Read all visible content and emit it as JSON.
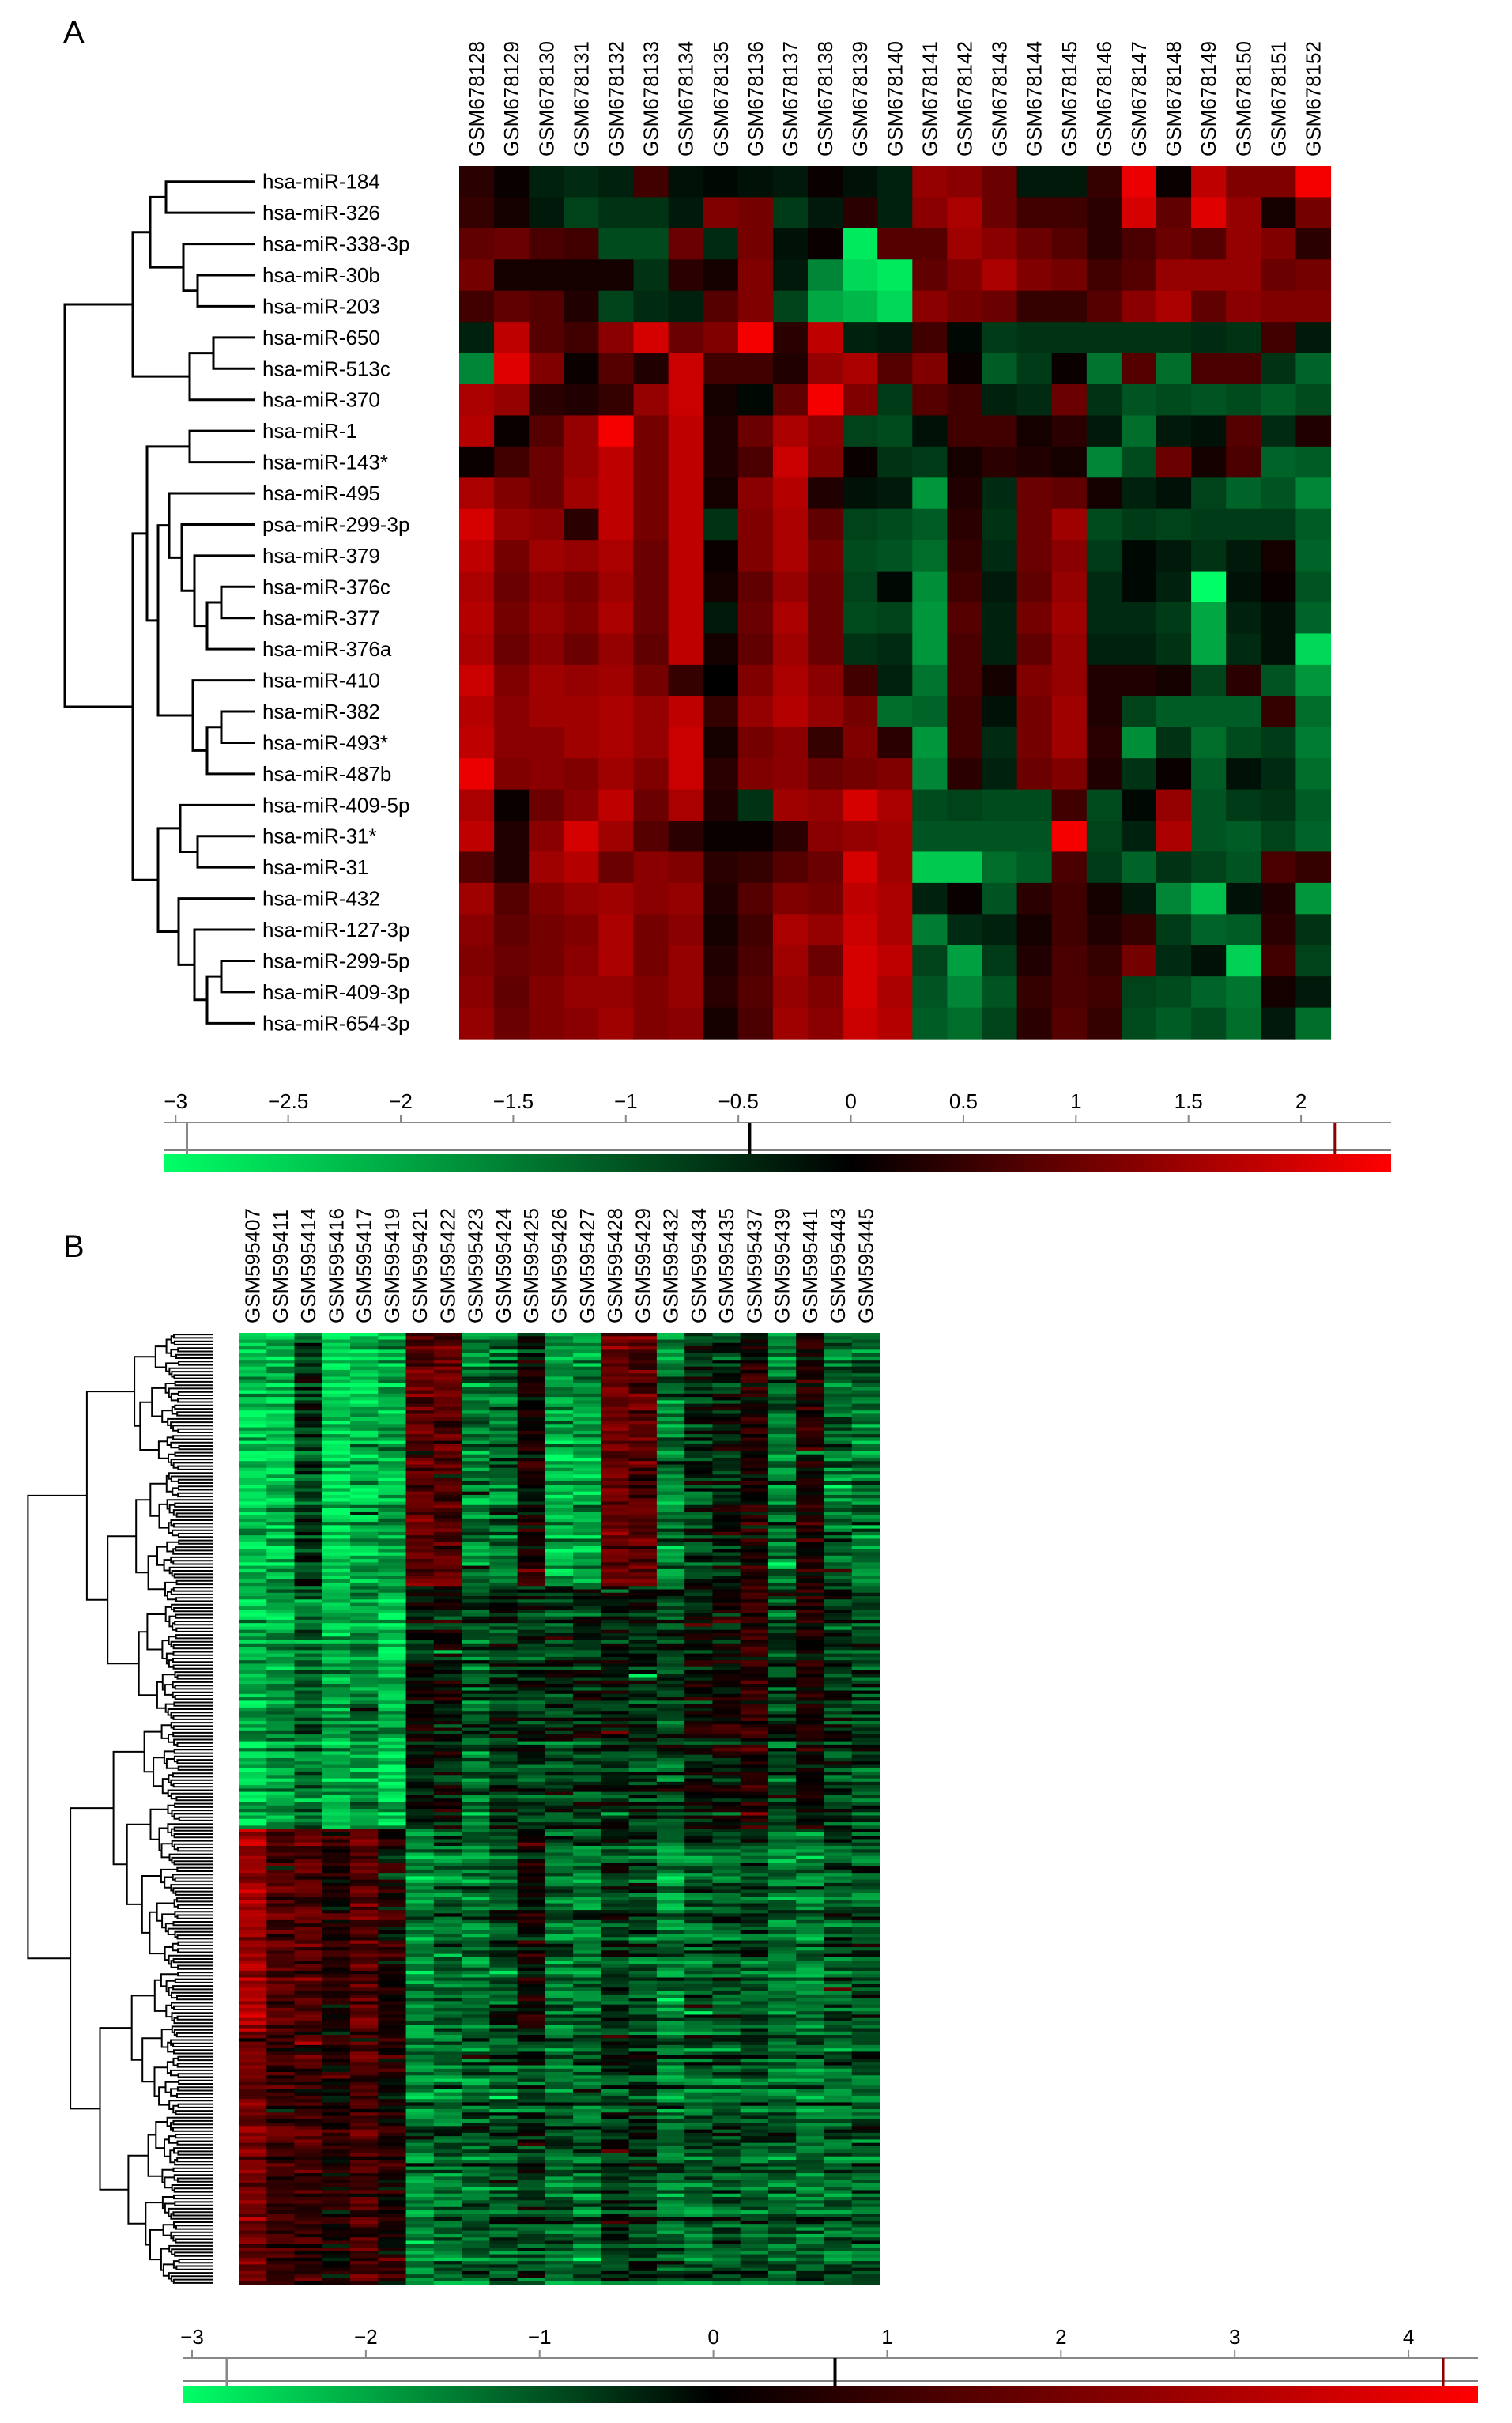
{
  "panels": {
    "a": {
      "label": "A"
    },
    "b": {
      "label": "B"
    }
  },
  "colors": {
    "low": "#00ff66",
    "mid": "#000000",
    "high": "#ff0000"
  },
  "chart_data": [
    {
      "type": "heatmap",
      "panel": "A",
      "x": [
        "GSM678128",
        "GSM678129",
        "GSM678130",
        "GSM678131",
        "GSM678132",
        "GSM678133",
        "GSM678134",
        "GSM678135",
        "GSM678136",
        "GSM678137",
        "GSM678138",
        "GSM678139",
        "GSM678140",
        "GSM678141",
        "GSM678142",
        "GSM678143",
        "GSM678144",
        "GSM678145",
        "GSM678146",
        "GSM678147",
        "GSM678148",
        "GSM678149",
        "GSM678150",
        "GSM678151",
        "GSM678152"
      ],
      "y": [
        "hsa-miR-184",
        "hsa-miR-326",
        "hsa-miR-338-3p",
        "hsa-miR-30b",
        "hsa-miR-203",
        "hsa-miR-650",
        "hsa-miR-513c",
        "hsa-miR-370",
        "hsa-miR-1",
        "hsa-miR-143*",
        "hsa-miR-495",
        "psa-miR-299-3p",
        "hsa-miR-379",
        "hsa-miR-376c",
        "hsa-miR-377",
        "hsa-miR-376a",
        "hsa-miR-410",
        "hsa-miR-382",
        "hsa-miR-493*",
        "hsa-miR-487b",
        "hsa-miR-409-5p",
        "hsa-miR-31*",
        "hsa-miR-31",
        "hsa-miR-432",
        "hsa-miR-127-3p",
        "hsa-miR-299-5p",
        "hsa-miR-409-3p",
        "hsa-miR-654-3p"
      ],
      "values": [
        [
          0.4,
          0.1,
          -0.4,
          -0.5,
          -0.4,
          0.6,
          -0.2,
          -0.1,
          -0.2,
          -0.3,
          0.1,
          -0.2,
          -0.4,
          1.4,
          1.3,
          1.0,
          -0.3,
          -0.3,
          0.5,
          2.2,
          0.1,
          1.8,
          1.2,
          1.2,
          2.3
        ],
        [
          0.5,
          0.2,
          -0.3,
          -0.8,
          -0.6,
          -0.6,
          -0.3,
          1.2,
          1.1,
          -0.7,
          -0.3,
          0.4,
          -0.4,
          1.3,
          1.6,
          1.0,
          0.6,
          0.6,
          0.4,
          2.0,
          0.9,
          2.1,
          1.4,
          0.2,
          1.1
        ],
        [
          0.9,
          1.0,
          0.7,
          0.6,
          -0.9,
          -0.9,
          1.0,
          -0.5,
          1.1,
          -0.2,
          0.1,
          -2.8,
          0.8,
          0.8,
          1.5,
          1.3,
          1.0,
          0.8,
          0.4,
          0.7,
          1.0,
          0.8,
          1.4,
          1.2,
          0.4
        ],
        [
          1.1,
          0.2,
          0.2,
          0.2,
          0.2,
          -0.6,
          0.4,
          0.2,
          1.2,
          -0.3,
          -1.6,
          -2.6,
          -2.8,
          0.9,
          1.2,
          1.6,
          1.2,
          1.1,
          0.6,
          0.8,
          1.4,
          1.4,
          1.4,
          1.0,
          1.1
        ],
        [
          0.6,
          0.9,
          0.8,
          0.3,
          -0.8,
          -0.5,
          -0.4,
          0.8,
          1.2,
          -0.8,
          -2.0,
          -2.2,
          -2.6,
          1.3,
          1.1,
          1.0,
          0.5,
          0.5,
          0.8,
          1.3,
          1.6,
          0.9,
          1.3,
          1.2,
          1.2
        ],
        [
          -0.4,
          1.8,
          0.8,
          0.6,
          1.3,
          2.0,
          1.0,
          1.2,
          2.3,
          0.4,
          1.8,
          -0.4,
          -0.3,
          0.6,
          -0.1,
          -0.7,
          -0.6,
          -0.6,
          -0.6,
          -0.6,
          -0.6,
          -0.5,
          -0.6,
          0.6,
          -0.3
        ],
        [
          -1.6,
          2.1,
          1.2,
          0.1,
          0.8,
          0.3,
          1.9,
          0.6,
          0.6,
          0.3,
          1.4,
          1.6,
          0.8,
          1.2,
          0.1,
          -1.1,
          -0.7,
          0.1,
          -1.4,
          0.8,
          -1.3,
          0.7,
          0.7,
          -0.6,
          -1.2
        ],
        [
          1.6,
          1.4,
          0.4,
          0.3,
          0.5,
          1.4,
          1.9,
          0.2,
          -0.1,
          0.9,
          2.3,
          1.2,
          -0.7,
          0.8,
          0.6,
          -0.4,
          -0.5,
          1.0,
          -0.6,
          -1.0,
          -0.9,
          -1.0,
          -0.9,
          -1.1,
          -0.9
        ],
        [
          1.7,
          0.1,
          0.8,
          1.4,
          2.3,
          1.1,
          1.8,
          0.3,
          1.0,
          1.6,
          1.3,
          -0.8,
          -0.9,
          -0.2,
          0.6,
          0.6,
          0.2,
          0.4,
          -0.3,
          -1.3,
          -0.3,
          -0.2,
          0.8,
          -0.5,
          0.3
        ],
        [
          0.1,
          0.6,
          1.0,
          1.4,
          1.8,
          1.1,
          1.8,
          0.3,
          0.7,
          1.9,
          1.2,
          0.1,
          -0.6,
          -0.7,
          0.2,
          0.4,
          0.3,
          0.2,
          -1.6,
          -0.9,
          1.0,
          0.2,
          0.7,
          -1.2,
          -1.1
        ],
        [
          1.6,
          1.2,
          1.0,
          1.5,
          1.8,
          1.1,
          1.8,
          0.2,
          1.3,
          1.7,
          0.3,
          -0.2,
          -0.3,
          -1.8,
          0.3,
          -0.5,
          1.0,
          0.9,
          0.2,
          -0.4,
          -0.2,
          -0.8,
          -1.2,
          -1.0,
          -1.6
        ],
        [
          2.0,
          1.4,
          1.3,
          0.4,
          1.8,
          1.1,
          1.8,
          -0.6,
          1.2,
          1.6,
          0.9,
          -0.8,
          -0.9,
          -1.1,
          0.4,
          -0.6,
          1.0,
          1.5,
          -0.9,
          -0.7,
          -0.8,
          -0.7,
          -0.7,
          -0.7,
          -1.1
        ],
        [
          1.8,
          1.1,
          1.5,
          1.4,
          1.6,
          1.0,
          1.8,
          0.1,
          1.2,
          1.6,
          1.1,
          -0.9,
          -1.0,
          -1.3,
          0.5,
          -0.5,
          1.0,
          1.3,
          -0.7,
          -0.1,
          -0.3,
          -0.6,
          -0.3,
          0.2,
          -1.2
        ],
        [
          1.6,
          1.0,
          1.3,
          1.1,
          1.5,
          1.0,
          1.8,
          0.2,
          0.9,
          1.4,
          1.0,
          -0.8,
          -0.1,
          -1.7,
          0.6,
          -0.3,
          0.9,
          1.4,
          -0.5,
          -0.1,
          -0.4,
          -3.1,
          -0.2,
          0.1,
          -1.0
        ],
        [
          1.7,
          1.1,
          1.4,
          1.2,
          1.6,
          1.0,
          1.8,
          -0.3,
          1.0,
          1.6,
          1.0,
          -0.9,
          -0.8,
          -1.8,
          0.8,
          -0.4,
          1.1,
          1.5,
          -0.5,
          -0.5,
          -0.7,
          -2.0,
          -0.4,
          -0.2,
          -1.2
        ],
        [
          1.6,
          1.0,
          1.3,
          1.0,
          1.4,
          0.9,
          1.8,
          0.2,
          0.9,
          1.5,
          1.0,
          -0.6,
          -0.5,
          -1.8,
          0.7,
          -0.4,
          0.9,
          1.4,
          -0.4,
          -0.4,
          -0.6,
          -2.0,
          -0.5,
          -0.2,
          -2.6
        ],
        [
          1.9,
          1.2,
          1.5,
          1.4,
          1.5,
          1.1,
          0.5,
          0.0,
          1.2,
          1.6,
          1.3,
          0.6,
          -0.4,
          -1.4,
          0.7,
          0.2,
          1.2,
          1.4,
          0.3,
          0.3,
          0.2,
          -0.8,
          0.4,
          -1.0,
          -1.8
        ],
        [
          1.7,
          1.3,
          1.5,
          1.5,
          1.6,
          1.4,
          1.8,
          0.5,
          1.4,
          1.7,
          1.4,
          1.1,
          -1.3,
          -1.2,
          0.6,
          -0.2,
          1.1,
          1.5,
          0.3,
          -0.8,
          -1.1,
          -1.1,
          -1.1,
          0.5,
          -1.3
        ],
        [
          1.8,
          1.3,
          1.3,
          1.5,
          1.6,
          1.4,
          1.9,
          0.2,
          1.1,
          1.3,
          0.5,
          1.2,
          0.4,
          -1.8,
          0.6,
          -0.5,
          1.1,
          1.5,
          0.4,
          -1.7,
          -0.6,
          -1.3,
          -0.9,
          -0.7,
          -1.5
        ],
        [
          2.2,
          1.2,
          1.3,
          1.2,
          1.5,
          1.2,
          1.9,
          0.4,
          1.2,
          1.3,
          1.0,
          1.1,
          1.2,
          -1.6,
          0.4,
          -0.4,
          1.0,
          1.2,
          0.3,
          -0.6,
          0.1,
          -1.1,
          -0.2,
          -0.5,
          -1.3
        ],
        [
          1.6,
          0.1,
          1.0,
          1.3,
          1.8,
          1.0,
          1.6,
          0.3,
          -0.6,
          1.5,
          1.4,
          2.0,
          1.6,
          -0.9,
          -0.8,
          -0.9,
          -0.9,
          0.6,
          -0.9,
          -0.1,
          1.4,
          -1.0,
          -0.7,
          -0.6,
          -1.1
        ],
        [
          1.8,
          0.3,
          1.3,
          2.0,
          1.5,
          0.8,
          0.4,
          0.1,
          0.1,
          0.4,
          1.3,
          1.4,
          1.5,
          -1.0,
          -1.0,
          -1.0,
          -1.0,
          2.3,
          -0.8,
          -0.4,
          1.6,
          -1.0,
          -1.1,
          -0.8,
          -1.2
        ],
        [
          0.8,
          0.3,
          1.5,
          1.7,
          1.0,
          1.3,
          1.2,
          0.4,
          0.5,
          0.8,
          1.0,
          2.0,
          1.5,
          -2.4,
          -2.4,
          -1.3,
          -1.1,
          0.7,
          -0.7,
          -1.2,
          -0.6,
          -0.8,
          -1.0,
          0.7,
          0.5
        ],
        [
          1.5,
          0.8,
          1.2,
          1.4,
          1.5,
          1.3,
          1.4,
          0.3,
          0.8,
          1.2,
          1.1,
          1.8,
          1.6,
          -0.4,
          0.1,
          -1.0,
          0.4,
          0.6,
          0.2,
          -0.3,
          -1.6,
          -2.3,
          -0.2,
          0.3,
          -1.8
        ],
        [
          1.3,
          0.9,
          1.1,
          1.2,
          1.6,
          1.1,
          1.3,
          0.2,
          0.6,
          1.6,
          1.4,
          1.9,
          1.6,
          -1.5,
          -0.5,
          -0.4,
          0.2,
          0.6,
          0.3,
          0.5,
          -0.7,
          -1.2,
          -1.1,
          0.4,
          -0.6
        ],
        [
          1.2,
          1.0,
          1.1,
          1.3,
          1.6,
          1.1,
          1.4,
          0.3,
          0.7,
          1.5,
          1.0,
          2.0,
          1.8,
          -0.8,
          -1.9,
          -0.7,
          0.3,
          0.7,
          0.5,
          1.1,
          -0.5,
          -0.2,
          -2.5,
          0.6,
          -0.8
        ],
        [
          1.3,
          0.9,
          1.2,
          1.4,
          1.4,
          1.2,
          1.4,
          0.4,
          0.8,
          1.4,
          1.2,
          2.0,
          1.6,
          -1.0,
          -1.6,
          -1.0,
          0.5,
          0.7,
          0.6,
          -0.8,
          -0.9,
          -1.2,
          -1.4,
          0.2,
          -0.3
        ],
        [
          1.4,
          1.0,
          1.2,
          1.3,
          1.5,
          1.2,
          1.3,
          0.2,
          0.7,
          1.5,
          1.3,
          1.9,
          1.7,
          -1.1,
          -1.3,
          -0.8,
          0.4,
          0.8,
          0.5,
          -0.9,
          -1.1,
          -0.9,
          -1.3,
          -0.3,
          -1.3
        ]
      ],
      "colorbar": {
        "ticks": [
          -3,
          -2.5,
          -2,
          -1.5,
          -1,
          -0.5,
          0,
          0.5,
          1,
          1.5,
          2
        ],
        "tick_labels": [
          "−3",
          "−2.5",
          "−2",
          "−1.5",
          "−1",
          "−0.5",
          "0",
          "0.5",
          "1",
          "1.5",
          "2"
        ],
        "range": [
          -3.05,
          2.4
        ],
        "markers": [
          -2.95,
          -0.45,
          2.15
        ]
      }
    },
    {
      "type": "heatmap",
      "panel": "B",
      "x": [
        "GSM595407",
        "GSM595411",
        "GSM595414",
        "GSM595416",
        "GSM595417",
        "GSM595419",
        "GSM595421",
        "GSM595422",
        "GSM595423",
        "GSM595424",
        "GSM595425",
        "GSM595426",
        "GSM595427",
        "GSM595428",
        "GSM595429",
        "GSM595432",
        "GSM595434",
        "GSM595435",
        "GSM595437",
        "GSM595439",
        "GSM595441",
        "GSM595443",
        "GSM595445"
      ],
      "row_blocks": [
        {
          "rows": 75,
          "values": [
            -2.4,
            -2.2,
            -0.7,
            -2.6,
            -2.3,
            -2.0,
            1.6,
            1.4,
            -1.6,
            -1.4,
            0.3,
            -2.1,
            -2.0,
            1.9,
            1.4,
            -1.6,
            -0.6,
            -0.4,
            0.4,
            -1.4,
            0.5,
            -1.3,
            -1.5
          ]
        },
        {
          "rows": 72,
          "values": [
            -2.3,
            -1.8,
            -1.5,
            -2.1,
            -1.8,
            -2.3,
            -0.2,
            0.0,
            -1.0,
            -0.5,
            -0.6,
            -0.8,
            -0.5,
            -0.3,
            -0.5,
            -0.9,
            -0.2,
            0.1,
            0.7,
            -0.8,
            0.3,
            -0.6,
            -0.8
          ]
        },
        {
          "rows": 60,
          "values": [
            2.8,
            1.3,
            1.5,
            0.6,
            1.6,
            0.4,
            -1.6,
            -1.2,
            -1.3,
            -0.8,
            0.3,
            -1.2,
            -1.3,
            -0.6,
            -0.9,
            -1.5,
            -1.0,
            -0.8,
            -0.8,
            -1.4,
            -1.5,
            -1.0,
            -0.9
          ]
        },
        {
          "rows": 75,
          "values": [
            2.1,
            1.0,
            1.1,
            0.5,
            1.3,
            0.5,
            -1.5,
            -1.3,
            -1.1,
            -1.0,
            -0.7,
            -1.1,
            -1.2,
            -0.5,
            -0.6,
            -1.2,
            -1.0,
            -0.9,
            -0.9,
            -1.1,
            -1.2,
            -1.1,
            -0.9
          ]
        }
      ],
      "colorbar": {
        "ticks": [
          -3,
          -2,
          -1,
          0,
          1,
          2,
          3,
          4
        ],
        "tick_labels": [
          "−3",
          "−2",
          "−1",
          "0",
          "1",
          "2",
          "3",
          "4"
        ],
        "range": [
          -3.05,
          4.4
        ],
        "markers": [
          -2.8,
          0.7,
          4.2
        ]
      }
    }
  ]
}
